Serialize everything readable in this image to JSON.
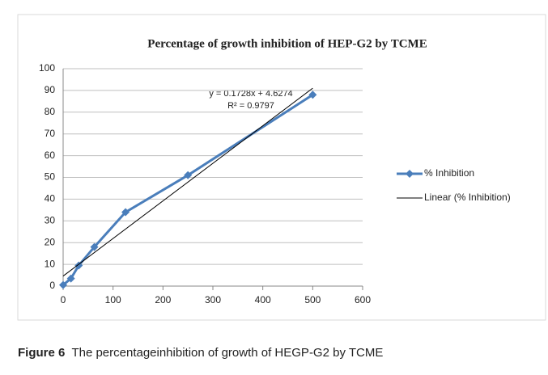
{
  "chart_data": {
    "type": "scatter-line",
    "title": "Percentage of growth  inhibition  of HEP-G2  by TCME",
    "x": [
      0,
      15.6,
      31.25,
      62.5,
      125,
      250,
      500
    ],
    "series": [
      {
        "name": "% Inhibition",
        "color": "#4a7ebb",
        "values": [
          0.5,
          3.5,
          9.5,
          18,
          34,
          51,
          88
        ]
      }
    ],
    "trendline": {
      "name": "Linear (% Inhibition)",
      "color": "#000000",
      "slope": 0.1728,
      "intercept": 4.6274,
      "equation": "y = 0.1728x + 4.6274",
      "r_squared": "R² = 0.9797"
    },
    "xlim": [
      0,
      600
    ],
    "xticks": [
      0,
      100,
      200,
      300,
      400,
      500,
      600
    ],
    "ylim": [
      0,
      100
    ],
    "yticks": [
      0,
      10,
      20,
      30,
      40,
      50,
      60,
      70,
      80,
      90,
      100
    ],
    "grid": true,
    "legend": "right"
  },
  "caption": {
    "label": "Figure 6",
    "text": "The percentageinhibition of growth of HEGP-G2 by TCME"
  }
}
